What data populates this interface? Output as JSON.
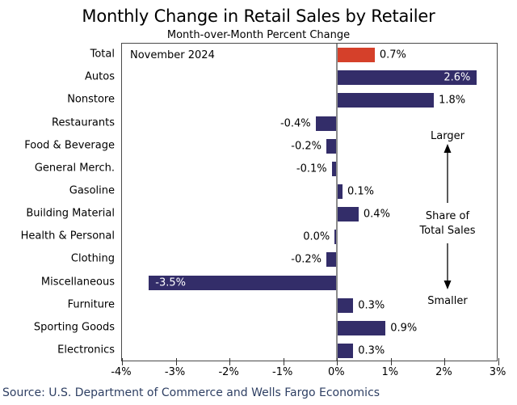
{
  "chart_data": {
    "type": "bar",
    "orientation": "horizontal",
    "title": "Monthly Change in Retail Sales by Retailer",
    "subtitle": "Month-over-Month Percent Change",
    "categories": [
      "Total",
      "Autos",
      "Nonstore",
      "Restaurants",
      "Food & Beverage",
      "General Merch.",
      "Gasoline",
      "Building Material",
      "Health & Personal",
      "Clothing",
      "Miscellaneous",
      "Furniture",
      "Sporting Goods",
      "Electronics"
    ],
    "values": [
      0.7,
      2.6,
      1.8,
      -0.4,
      -0.2,
      -0.1,
      0.1,
      0.4,
      0.0,
      -0.2,
      -3.5,
      0.3,
      0.9,
      0.3
    ],
    "value_labels": [
      "0.7%",
      "2.6%",
      "1.8%",
      "-0.4%",
      "-0.2%",
      "-0.1%",
      "0.1%",
      "0.4%",
      "0.0%",
      "-0.2%",
      "-3.5%",
      "0.3%",
      "0.9%",
      "0.3%"
    ],
    "inside_label_indices": [
      1,
      10
    ],
    "highlight_index": 0,
    "xlim": [
      -4,
      3
    ],
    "x_ticks": [
      "-4%",
      "-3%",
      "-2%",
      "-1%",
      "0%",
      "1%",
      "2%",
      "3%"
    ],
    "x_tick_values": [
      -4,
      -3,
      -2,
      -1,
      0,
      1,
      2,
      3
    ],
    "grid": false,
    "legend": "none"
  },
  "annotations": {
    "date_label": "November 2024",
    "larger": "Larger",
    "share_line1": "Share of",
    "share_line2": "Total Sales",
    "smaller": "Smaller"
  },
  "source": "Source: U.S. Department of Commerce and Wells Fargo Economics",
  "colors": {
    "bar_default": "#332d69",
    "bar_highlight": "#d5402a",
    "inside_label_text": "#ffffff",
    "outside_label_text": "#000000",
    "source_text": "#2e3f63",
    "axis_border": "#4a4a4a",
    "zero_line": "#8c8c8c"
  }
}
